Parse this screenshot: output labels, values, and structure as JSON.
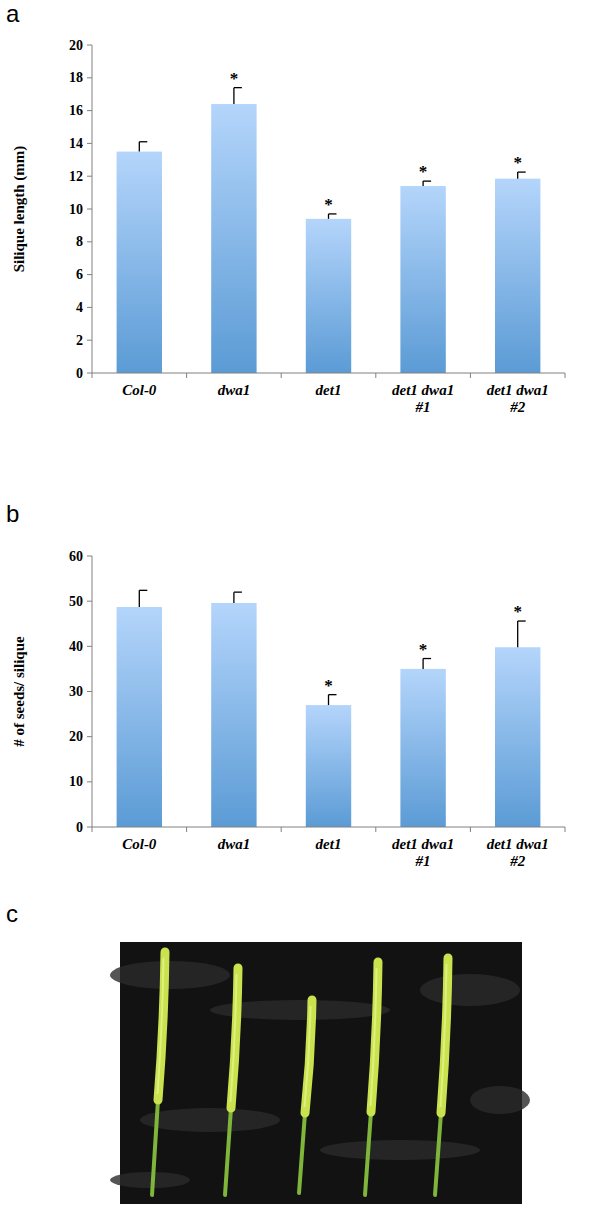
{
  "chart_data": [
    {
      "type": "bar",
      "panel_label": "a",
      "y_label": "Silique length (mm)",
      "categories": [
        "Col-0",
        "dwa1",
        "det1",
        "det1 dwa1 #1",
        "det1 dwa1 #2"
      ],
      "values": [
        13.5,
        16.4,
        9.4,
        11.4,
        11.85
      ],
      "errors": [
        0.6,
        1.0,
        0.3,
        0.3,
        0.4
      ],
      "annotations": [
        {
          "index": 1,
          "text": "*"
        },
        {
          "index": 2,
          "text": "*"
        },
        {
          "index": 3,
          "text": "*"
        },
        {
          "index": 4,
          "text": "*"
        }
      ],
      "color": "#5b9bd5",
      "ylim": [
        0,
        20
      ],
      "yticks": [
        0,
        2,
        4,
        6,
        8,
        10,
        12,
        14,
        16,
        18,
        20
      ],
      "grid": false
    },
    {
      "type": "bar",
      "panel_label": "b",
      "y_label": "# of seeds/ silique",
      "categories": [
        "Col-0",
        "dwa1",
        "det1",
        "det1 dwa1 #1",
        "det1 dwa1 #2"
      ],
      "values": [
        48.7,
        49.6,
        27,
        35,
        39.8
      ],
      "errors": [
        3.7,
        2.4,
        2.3,
        2.3,
        5.8
      ],
      "annotations": [
        {
          "index": 2,
          "text": "*"
        },
        {
          "index": 3,
          "text": "*"
        },
        {
          "index": 4,
          "text": "*"
        }
      ],
      "color": "#5b9bd5",
      "ylim": [
        0,
        60
      ],
      "yticks": [
        0,
        10,
        20,
        30,
        40,
        50,
        60
      ],
      "grid": false
    }
  ],
  "image_panel": {
    "label": "c"
  }
}
